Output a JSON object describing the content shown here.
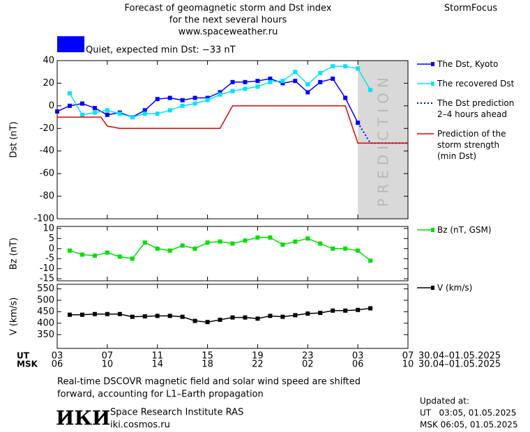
{
  "header": {
    "title_lines": [
      "Forecast of geomagnetic storm and Dst index",
      "for the next several hours",
      "www.spaceweather.ru"
    ],
    "brand": "StormFocus"
  },
  "status": {
    "label": "Quiet, expected min Dst: −33 nT",
    "color": "#0000ff"
  },
  "chart_data": [
    {
      "type": "line",
      "ylabel": "Dst (nT)",
      "xlim": [
        0,
        28
      ],
      "xticks": [
        0,
        4,
        8,
        12,
        16,
        20,
        24,
        28
      ],
      "ylim": [
        -100,
        40
      ],
      "yticks": [
        40,
        20,
        0,
        -20,
        -40,
        -60,
        -80,
        -100
      ],
      "legend": "right",
      "prediction_band": {
        "label": "PREDICTION",
        "x": [
          24,
          28
        ],
        "color": "#d9d9d9"
      },
      "series": [
        {
          "name": "The Dst, Kyoto",
          "color": "#0000ff",
          "marker": "square",
          "style": "solid",
          "x": [
            0,
            1,
            2,
            3,
            4,
            5,
            6,
            7,
            8,
            9,
            10,
            11,
            12,
            13,
            14,
            15,
            16,
            17,
            18,
            19,
            20,
            21,
            22,
            23,
            24
          ],
          "values": [
            -5,
            0,
            2,
            -2,
            -8,
            -6,
            -10,
            -4,
            6,
            7,
            5,
            7,
            7,
            12,
            21,
            21,
            22,
            24,
            20,
            22,
            12,
            21,
            24,
            7,
            -15
          ]
        },
        {
          "name": "The recovered Dst",
          "color": "#00e5f5",
          "marker": "square",
          "style": "solid",
          "x": [
            1,
            2,
            3,
            4,
            5,
            6,
            7,
            8,
            9,
            10,
            11,
            12,
            13,
            14,
            15,
            16,
            17,
            18,
            19,
            20,
            21,
            22,
            23,
            24,
            25
          ],
          "values": [
            11,
            -8,
            -6,
            -4,
            -7,
            -10,
            -7,
            -7,
            -4,
            0,
            2,
            5,
            10,
            13,
            15,
            17,
            21,
            22,
            30,
            19,
            29,
            35,
            35,
            33,
            14
          ]
        },
        {
          "name": "The Dst prediction\n2–4 hours ahead",
          "color": "#0000ff",
          "marker": "none",
          "style": "dotted",
          "x": [
            24,
            25,
            28
          ],
          "values": [
            -15,
            -33,
            -33
          ]
        },
        {
          "name": "Prediction of the\nstorm strength\n(min Dst)",
          "color": "#e00000",
          "marker": "none",
          "style": "solid",
          "x": [
            0,
            3.5,
            4,
            5,
            13,
            14,
            23,
            24,
            28
          ],
          "values": [
            -10,
            -10,
            -18,
            -20,
            -20,
            0,
            0,
            -33,
            -33
          ]
        }
      ]
    },
    {
      "type": "line",
      "ylabel": "Bz (nT)",
      "xlim": [
        0,
        28
      ],
      "xticks": [
        0,
        4,
        8,
        12,
        16,
        20,
        24,
        28
      ],
      "ylim": [
        -16,
        11
      ],
      "yticks": [
        10,
        5,
        0,
        -5,
        -10,
        -15
      ],
      "legend": "right",
      "series": [
        {
          "name": "Bz (nT, GSM)",
          "color": "#00e000",
          "marker": "square",
          "style": "solid",
          "x": [
            1,
            2,
            3,
            4,
            5,
            6,
            7,
            8,
            9,
            10,
            11,
            12,
            13,
            14,
            15,
            16,
            17,
            18,
            19,
            20,
            21,
            22,
            23,
            24,
            25
          ],
          "values": [
            -1,
            -3,
            -3.5,
            -2,
            -4,
            -5,
            3,
            0,
            -1,
            1.5,
            0,
            3,
            3.5,
            2.5,
            4,
            5.5,
            5.5,
            2,
            3.5,
            5,
            2.5,
            0,
            0,
            -1,
            -6
          ]
        }
      ]
    },
    {
      "type": "line",
      "ylabel": "V (km/s)",
      "xlim": [
        0,
        28
      ],
      "xticks": [
        {
          "value": 0,
          "label": "03"
        },
        {
          "value": 4,
          "label": "07"
        },
        {
          "value": 8,
          "label": "11"
        },
        {
          "value": 12,
          "label": "15"
        },
        {
          "value": 16,
          "label": "19"
        },
        {
          "value": 20,
          "label": "23"
        },
        {
          "value": 24,
          "label": "03"
        },
        {
          "value": 28,
          "label": "07"
        }
      ],
      "xticks_msk": [
        {
          "value": 0,
          "label": "06"
        },
        {
          "value": 4,
          "label": "10"
        },
        {
          "value": 8,
          "label": "14"
        },
        {
          "value": 12,
          "label": "18"
        },
        {
          "value": 16,
          "label": "22"
        },
        {
          "value": 20,
          "label": "02"
        },
        {
          "value": 24,
          "label": "06"
        },
        {
          "value": 28,
          "label": "10"
        }
      ],
      "x_row_labels": [
        "UT",
        "MSK"
      ],
      "date_range_ut": "30.04–01.05.2025",
      "date_range_msk": "30.04–01.05.2025",
      "ylim": [
        290,
        570
      ],
      "yticks": [
        350,
        400,
        450,
        500,
        550
      ],
      "legend": "right",
      "series": [
        {
          "name": "V (km/s)",
          "color": "#000000",
          "marker": "square",
          "style": "solid",
          "x": [
            1,
            2,
            3,
            4,
            5,
            6,
            7,
            8,
            9,
            10,
            11,
            12,
            13,
            14,
            15,
            16,
            17,
            18,
            19,
            20,
            21,
            22,
            23,
            24,
            25
          ],
          "values": [
            437,
            437,
            440,
            440,
            440,
            428,
            430,
            432,
            432,
            428,
            410,
            405,
            415,
            425,
            425,
            420,
            432,
            428,
            435,
            442,
            445,
            455,
            455,
            458,
            465
          ]
        }
      ]
    }
  ],
  "footer": {
    "note_lines": [
      "Real-time DSCOVR magnetic field and solar wind speed are shifted",
      "forward, accounting for L1–Earth propagation"
    ],
    "logo": "ИКИ",
    "institute": "Space Research Institute RAS",
    "site": "iki.cosmos.ru",
    "updated_lines": [
      "Updated at:",
      "UT   03:05, 01.05.2025",
      "MSK 06:05, 01.05.2025"
    ]
  }
}
